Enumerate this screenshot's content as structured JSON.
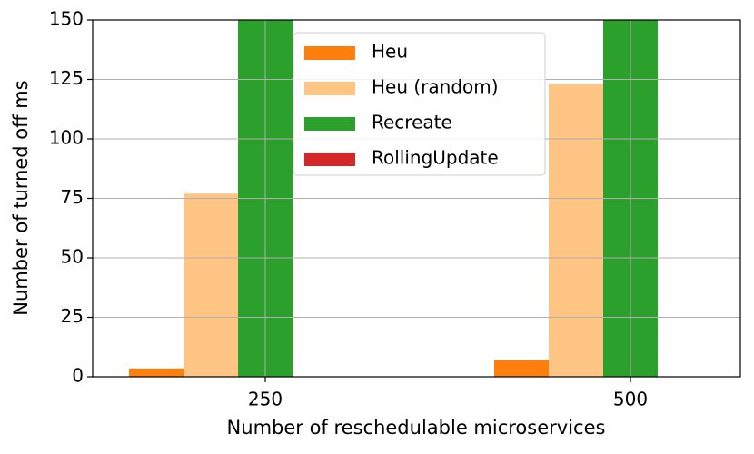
{
  "chart_data": {
    "type": "bar",
    "x_label": "Number of reschedulable microservices",
    "y_label": "Number of turned off ms",
    "categories": [
      "250",
      "500"
    ],
    "series": [
      {
        "name": "Heu",
        "color": "#ff7f0e",
        "values": [
          3.5,
          7
        ]
      },
      {
        "name": "Heu (random)",
        "color": "#ffc585",
        "values": [
          77,
          123
        ]
      },
      {
        "name": "Recreate",
        "color": "#2ca02c",
        "values": [
          150,
          150
        ]
      },
      {
        "name": "RollingUpdate",
        "color": "#d62728",
        "values": [
          0,
          0
        ]
      }
    ],
    "ylim": [
      0,
      150
    ],
    "yticks": [
      0,
      25,
      50,
      75,
      100,
      125,
      150
    ],
    "grid": true,
    "legend": "upper center"
  }
}
